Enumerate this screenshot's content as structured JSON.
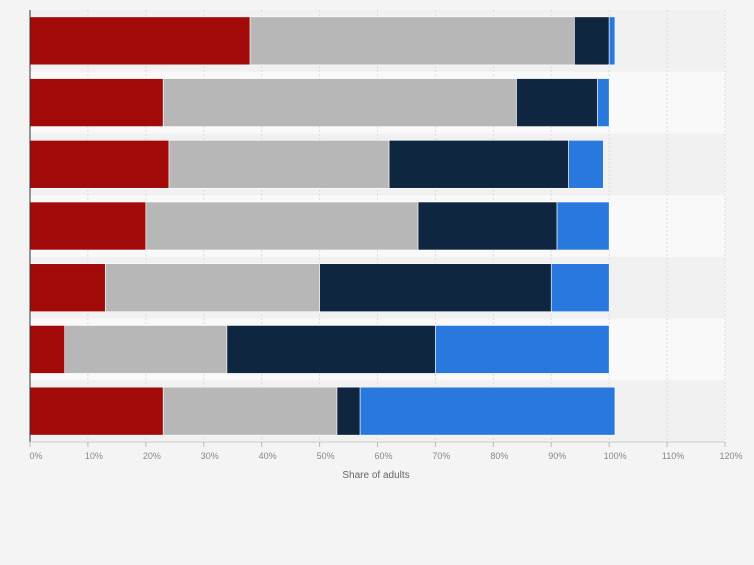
{
  "chart_data": {
    "type": "bar",
    "orientation": "horizontal",
    "stacked": true,
    "xlabel": "Share of adults",
    "xlim": [
      0,
      120
    ],
    "xticks": [
      0,
      10,
      20,
      30,
      40,
      50,
      60,
      70,
      80,
      90,
      100,
      110,
      120
    ],
    "xtick_labels": [
      "0%",
      "10%",
      "20%",
      "30%",
      "40%",
      "50%",
      "60%",
      "70%",
      "80%",
      "90%",
      "100%",
      "110%",
      "120%"
    ],
    "grid": true,
    "legend": "none",
    "series": [
      {
        "values": [
          38,
          23,
          24,
          20,
          13,
          6,
          23
        ],
        "color": "#a20a0a"
      },
      {
        "values": [
          56,
          61,
          38,
          47,
          37,
          28,
          30
        ],
        "color": "#b7b7b7"
      },
      {
        "values": [
          6,
          14,
          31,
          24,
          40,
          36,
          4
        ],
        "color": "#0f2640"
      },
      {
        "values": [
          1,
          2,
          6,
          9,
          10,
          30,
          44
        ],
        "color": "#2878de"
      }
    ]
  }
}
